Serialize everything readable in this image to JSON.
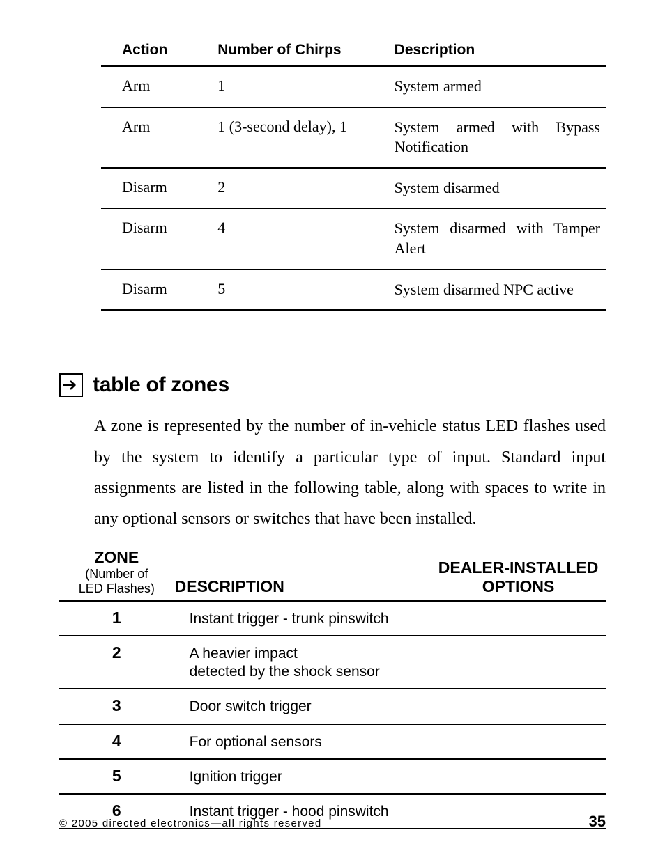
{
  "chirps_table": {
    "columns": [
      "Action",
      "Number of Chirps",
      "Description"
    ],
    "rows": [
      [
        "Arm",
        "1",
        "System armed"
      ],
      [
        "Arm",
        "1 (3-second delay), 1",
        "System armed with Bypass Notification"
      ],
      [
        "Disarm",
        "2",
        "System disarmed"
      ],
      [
        "Disarm",
        "4",
        "System disarmed with Tamper Alert"
      ],
      [
        "Disarm",
        "5",
        "System disarmed NPC active"
      ]
    ],
    "border_color": "#000000",
    "header_font": "Helvetica-Bold",
    "body_font": "Times"
  },
  "section": {
    "title": "table of zones",
    "paragraph": "A zone is represented by the number of in-vehicle status LED flashes used by the system to identify a particular type of input. Standard input assignments are listed in the following table, along with spaces to write in any optional sensors or switches that have been installed."
  },
  "zones_table": {
    "col1_title": "ZONE",
    "col1_sub1": "(Number of",
    "col1_sub2": "LED Flashes)",
    "col2_title": "DESCRIPTION",
    "col3_line1": "DEALER-INSTALLED",
    "col3_line2": "OPTIONS",
    "rows": [
      [
        "1",
        "Instant trigger - trunk pinswitch",
        ""
      ],
      [
        "2",
        "A heavier impact\ndetected by the shock sensor",
        ""
      ],
      [
        "3",
        "Door switch trigger",
        ""
      ],
      [
        "4",
        "For optional sensors",
        ""
      ],
      [
        "5",
        "Ignition trigger",
        ""
      ],
      [
        "6",
        "Instant trigger - hood pinswitch",
        ""
      ]
    ],
    "border_color": "#000000"
  },
  "footer": {
    "copyright": "© 2005 directed electronics—all rights reserved",
    "page_number": "35"
  }
}
